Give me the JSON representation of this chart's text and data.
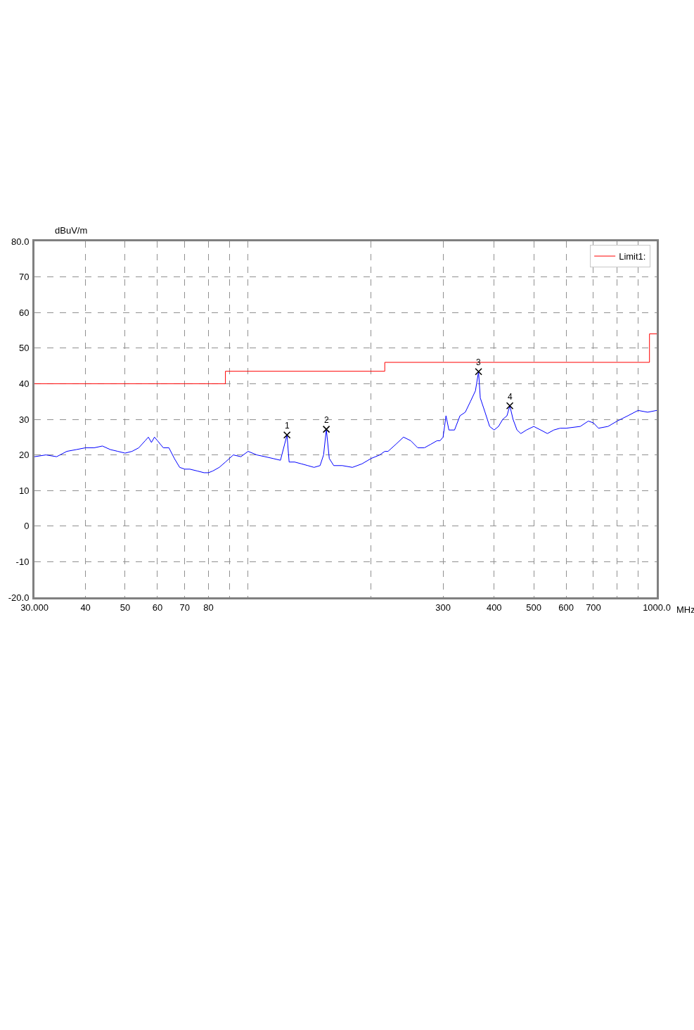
{
  "chart_data": {
    "type": "line",
    "xlabel": "MHz",
    "ylabel": "dBuV/m",
    "log": "x",
    "xlim": [
      30,
      1000
    ],
    "ylim": [
      -20,
      80
    ],
    "xticks": [
      {
        "value": 30,
        "label": "30.000"
      },
      40,
      50,
      60,
      70,
      80,
      {
        "value": 90,
        "label": null
      },
      {
        "value": 100,
        "label": null
      },
      {
        "value": 200,
        "label": null
      },
      300,
      400,
      500,
      600,
      700,
      {
        "value": 800,
        "label": null
      },
      {
        "value": 900,
        "label": null
      },
      {
        "value": 1000,
        "label": "1000.0"
      }
    ],
    "yticks": [
      {
        "value": -20,
        "label": "-20.0"
      },
      -10,
      0,
      10,
      20,
      30,
      40,
      50,
      60,
      70,
      {
        "value": 80,
        "label": "80.0"
      }
    ],
    "grid": true,
    "legend": "top right",
    "series": [
      {
        "color": "#0000ff",
        "x": [
          30,
          32,
          34,
          36,
          38,
          40,
          42,
          44,
          46,
          48,
          50,
          52,
          54,
          56,
          57,
          58,
          59,
          60,
          62,
          64,
          66,
          68,
          70,
          72,
          75,
          78,
          80,
          82,
          85,
          88,
          92,
          96,
          100,
          105,
          110,
          115,
          120,
          124.5,
          126,
          130,
          135,
          140,
          145,
          150,
          153,
          155.4,
          158,
          162,
          170,
          180,
          190,
          200,
          210,
          216,
          220,
          230,
          240,
          250,
          260,
          270,
          280,
          290,
          295,
          300,
          305,
          310,
          320,
          330,
          340,
          350,
          360,
          366.4,
          370,
          380,
          390,
          400,
          410,
          420,
          430,
          437,
          445,
          455,
          465,
          480,
          500,
          520,
          540,
          560,
          580,
          600,
          650,
          680,
          700,
          720,
          760,
          800,
          850,
          900,
          950,
          1000
        ],
        "values": [
          19.5,
          20,
          19.5,
          21,
          21.5,
          22,
          22,
          22.5,
          21.5,
          21,
          20.5,
          21,
          22,
          24,
          25,
          23.5,
          25,
          24,
          22,
          22,
          19,
          16.5,
          16,
          16,
          15.5,
          15,
          15,
          15.5,
          16.5,
          18,
          20,
          19.5,
          21,
          20,
          19.5,
          19,
          18.5,
          25.6,
          18,
          18,
          17.5,
          17,
          16.5,
          17,
          20,
          27.2,
          19,
          17,
          17,
          16.5,
          17.5,
          19,
          20,
          21,
          21,
          23,
          25,
          24,
          22,
          22,
          23,
          24,
          24,
          25,
          31,
          27,
          27,
          31,
          32,
          35,
          38,
          43.4,
          36,
          32,
          28,
          27,
          28,
          30,
          31,
          33.8,
          30,
          27,
          26,
          27,
          28,
          27,
          26,
          27,
          27.5,
          27.5,
          28,
          29.5,
          29,
          27.5,
          28,
          29.5,
          31,
          32.5,
          32,
          32.5
        ]
      },
      {
        "type": "step",
        "name": "Limit1:",
        "color": "#ff0000",
        "x": [
          30,
          88,
          216,
          960,
          1000
        ],
        "values": [
          40,
          43.5,
          46,
          54,
          54
        ]
      },
      {
        "type": "scatter",
        "marker": "cross",
        "color": "#000000",
        "x": [
          124.5,
          155.4,
          366.4,
          437
        ],
        "values": [
          25.6,
          27.2,
          43.4,
          33.8
        ]
      }
    ],
    "annotations": [
      {
        "text": "1",
        "x": 124.5,
        "y": 25.6
      },
      {
        "text": "2",
        "x": 155.4,
        "y": 27.2
      },
      {
        "text": "3",
        "x": 366.4,
        "y": 43.4
      },
      {
        "text": "4",
        "x": 437,
        "y": 33.8
      }
    ]
  }
}
